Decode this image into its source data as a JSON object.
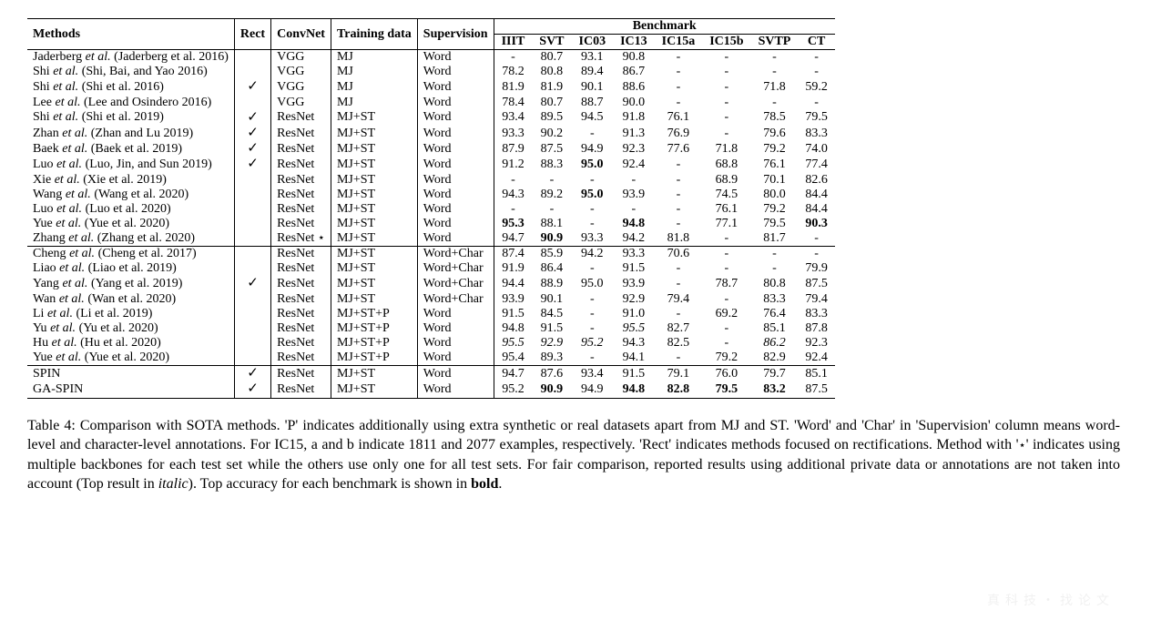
{
  "header": {
    "methods": "Methods",
    "rect": "Rect",
    "convnet": "ConvNet",
    "training": "Training data",
    "supervision": "Supervision",
    "benchmark": "Benchmark",
    "cols": [
      "IIIT",
      "SVT",
      "IC03",
      "IC13",
      "IC15a",
      "IC15b",
      "SVTP",
      "CT"
    ]
  },
  "check_symbol": "✓",
  "star_symbol": "⋆",
  "dash": "-",
  "groups": [
    {
      "rows": [
        {
          "method_pre": "Jaderberg ",
          "method_it": "et al.",
          "method_post": " (Jaderberg et al. 2016)",
          "rect": false,
          "convnet": "VGG",
          "training": "MJ",
          "supervision": "Word",
          "vals": [
            {
              "t": "-"
            },
            {
              "t": "80.7"
            },
            {
              "t": "93.1"
            },
            {
              "t": "90.8"
            },
            {
              "t": "-"
            },
            {
              "t": "-"
            },
            {
              "t": "-"
            },
            {
              "t": "-"
            }
          ]
        },
        {
          "method_pre": "Shi ",
          "method_it": "et al.",
          "method_post": " (Shi, Bai, and Yao 2016)",
          "rect": false,
          "convnet": "VGG",
          "training": "MJ",
          "supervision": "Word",
          "vals": [
            {
              "t": "78.2"
            },
            {
              "t": "80.8"
            },
            {
              "t": "89.4"
            },
            {
              "t": "86.7"
            },
            {
              "t": "-"
            },
            {
              "t": "-"
            },
            {
              "t": "-"
            },
            {
              "t": "-"
            }
          ]
        },
        {
          "method_pre": "Shi ",
          "method_it": "et al.",
          "method_post": " (Shi et al. 2016)",
          "rect": true,
          "convnet": "VGG",
          "training": "MJ",
          "supervision": "Word",
          "vals": [
            {
              "t": "81.9"
            },
            {
              "t": "81.9"
            },
            {
              "t": "90.1"
            },
            {
              "t": "88.6"
            },
            {
              "t": "-"
            },
            {
              "t": "-"
            },
            {
              "t": "71.8"
            },
            {
              "t": "59.2"
            }
          ]
        },
        {
          "method_pre": "Lee ",
          "method_it": "et al.",
          "method_post": " (Lee and Osindero 2016)",
          "rect": false,
          "convnet": "VGG",
          "training": "MJ",
          "supervision": "Word",
          "vals": [
            {
              "t": "78.4"
            },
            {
              "t": "80.7"
            },
            {
              "t": "88.7"
            },
            {
              "t": "90.0"
            },
            {
              "t": "-"
            },
            {
              "t": "-"
            },
            {
              "t": "-"
            },
            {
              "t": "-"
            }
          ]
        },
        {
          "method_pre": "Shi ",
          "method_it": "et al.",
          "method_post": " (Shi et al. 2019)",
          "rect": true,
          "convnet": "ResNet",
          "training": "MJ+ST",
          "supervision": "Word",
          "vals": [
            {
              "t": "93.4"
            },
            {
              "t": "89.5"
            },
            {
              "t": "94.5"
            },
            {
              "t": "91.8"
            },
            {
              "t": "76.1"
            },
            {
              "t": "-"
            },
            {
              "t": "78.5"
            },
            {
              "t": "79.5"
            }
          ]
        },
        {
          "method_pre": "Zhan ",
          "method_it": "et al.",
          "method_post": " (Zhan and Lu 2019)",
          "rect": true,
          "convnet": "ResNet",
          "training": "MJ+ST",
          "supervision": "Word",
          "vals": [
            {
              "t": "93.3"
            },
            {
              "t": "90.2"
            },
            {
              "t": "-"
            },
            {
              "t": "91.3"
            },
            {
              "t": "76.9"
            },
            {
              "t": "-"
            },
            {
              "t": "79.6"
            },
            {
              "t": "83.3"
            }
          ]
        },
        {
          "method_pre": "Baek ",
          "method_it": "et al.",
          "method_post": " (Baek et al. 2019)",
          "rect": true,
          "convnet": "ResNet",
          "training": "MJ+ST",
          "supervision": "Word",
          "vals": [
            {
              "t": "87.9"
            },
            {
              "t": "87.5"
            },
            {
              "t": "94.9"
            },
            {
              "t": "92.3"
            },
            {
              "t": "77.6"
            },
            {
              "t": "71.8"
            },
            {
              "t": "79.2"
            },
            {
              "t": "74.0"
            }
          ]
        },
        {
          "method_pre": "Luo ",
          "method_it": "et al.",
          "method_post": " (Luo, Jin, and Sun 2019)",
          "rect": true,
          "convnet": "ResNet",
          "training": "MJ+ST",
          "supervision": "Word",
          "vals": [
            {
              "t": "91.2"
            },
            {
              "t": "88.3"
            },
            {
              "t": "95.0",
              "b": true
            },
            {
              "t": "92.4"
            },
            {
              "t": "-"
            },
            {
              "t": "68.8"
            },
            {
              "t": "76.1"
            },
            {
              "t": "77.4"
            }
          ]
        },
        {
          "method_pre": "Xie ",
          "method_it": "et al.",
          "method_post": " (Xie et al. 2019)",
          "rect": false,
          "convnet": "ResNet",
          "training": "MJ+ST",
          "supervision": "Word",
          "vals": [
            {
              "t": "-"
            },
            {
              "t": "-"
            },
            {
              "t": "-"
            },
            {
              "t": "-"
            },
            {
              "t": "-"
            },
            {
              "t": "68.9"
            },
            {
              "t": "70.1"
            },
            {
              "t": "82.6"
            }
          ]
        },
        {
          "method_pre": "Wang ",
          "method_it": "et al.",
          "method_post": " (Wang et al. 2020)",
          "rect": false,
          "convnet": "ResNet",
          "training": "MJ+ST",
          "supervision": "Word",
          "vals": [
            {
              "t": "94.3"
            },
            {
              "t": "89.2"
            },
            {
              "t": "95.0",
              "b": true
            },
            {
              "t": "93.9"
            },
            {
              "t": "-"
            },
            {
              "t": "74.5"
            },
            {
              "t": "80.0"
            },
            {
              "t": "84.4"
            }
          ]
        },
        {
          "method_pre": "Luo ",
          "method_it": "et al.",
          "method_post": " (Luo et al. 2020)",
          "rect": false,
          "convnet": "ResNet",
          "training": "MJ+ST",
          "supervision": "Word",
          "vals": [
            {
              "t": "-"
            },
            {
              "t": "-"
            },
            {
              "t": "-"
            },
            {
              "t": "-"
            },
            {
              "t": "-"
            },
            {
              "t": "76.1"
            },
            {
              "t": "79.2"
            },
            {
              "t": "84.4"
            }
          ]
        },
        {
          "method_pre": "Yue ",
          "method_it": "et al.",
          "method_post": " (Yue et al. 2020)",
          "rect": false,
          "convnet": "ResNet",
          "training": "MJ+ST",
          "supervision": "Word",
          "vals": [
            {
              "t": "95.3",
              "b": true
            },
            {
              "t": "88.1"
            },
            {
              "t": "-"
            },
            {
              "t": "94.8",
              "b": true
            },
            {
              "t": "-"
            },
            {
              "t": "77.1"
            },
            {
              "t": "79.5"
            },
            {
              "t": "90.3",
              "b": true
            }
          ]
        },
        {
          "method_pre": "Zhang ",
          "method_it": "et al.",
          "method_post": " (Zhang et al. 2020)",
          "rect": false,
          "convnet": "ResNet",
          "convnet_star": true,
          "training": "MJ+ST",
          "supervision": "Word",
          "vals": [
            {
              "t": "94.7"
            },
            {
              "t": "90.9",
              "b": true
            },
            {
              "t": "93.3"
            },
            {
              "t": "94.2"
            },
            {
              "t": "81.8"
            },
            {
              "t": "-"
            },
            {
              "t": "81.7"
            },
            {
              "t": "-"
            }
          ]
        }
      ]
    },
    {
      "rows": [
        {
          "method_pre": "Cheng ",
          "method_it": "et al.",
          "method_post": " (Cheng et al. 2017)",
          "rect": false,
          "convnet": "ResNet",
          "training": "MJ+ST",
          "supervision": "Word+Char",
          "vals": [
            {
              "t": "87.4"
            },
            {
              "t": "85.9"
            },
            {
              "t": "94.2"
            },
            {
              "t": "93.3"
            },
            {
              "t": "70.6"
            },
            {
              "t": "-"
            },
            {
              "t": "-"
            },
            {
              "t": "-"
            }
          ]
        },
        {
          "method_pre": "Liao ",
          "method_it": "et al.",
          "method_post": " (Liao et al. 2019)",
          "rect": false,
          "convnet": "ResNet",
          "training": "MJ+ST",
          "supervision": "Word+Char",
          "vals": [
            {
              "t": "91.9"
            },
            {
              "t": "86.4"
            },
            {
              "t": "-"
            },
            {
              "t": "91.5"
            },
            {
              "t": "-"
            },
            {
              "t": "-"
            },
            {
              "t": "-"
            },
            {
              "t": "79.9"
            }
          ]
        },
        {
          "method_pre": "Yang ",
          "method_it": "et al.",
          "method_post": " (Yang et al. 2019)",
          "rect": true,
          "convnet": "ResNet",
          "training": "MJ+ST",
          "supervision": "Word+Char",
          "vals": [
            {
              "t": "94.4"
            },
            {
              "t": "88.9"
            },
            {
              "t": "95.0"
            },
            {
              "t": "93.9"
            },
            {
              "t": "-"
            },
            {
              "t": "78.7"
            },
            {
              "t": "80.8"
            },
            {
              "t": "87.5"
            }
          ]
        },
        {
          "method_pre": "Wan ",
          "method_it": "et al.",
          "method_post": " (Wan et al. 2020)",
          "rect": false,
          "convnet": "ResNet",
          "training": "MJ+ST",
          "supervision": "Word+Char",
          "vals": [
            {
              "t": "93.9"
            },
            {
              "t": "90.1"
            },
            {
              "t": "-"
            },
            {
              "t": "92.9"
            },
            {
              "t": "79.4"
            },
            {
              "t": "-"
            },
            {
              "t": "83.3"
            },
            {
              "t": "79.4"
            }
          ]
        },
        {
          "method_pre": "Li ",
          "method_it": "et al.",
          "method_post": " (Li et al. 2019)",
          "rect": false,
          "convnet": "ResNet",
          "training": "MJ+ST+P",
          "supervision": "Word",
          "vals": [
            {
              "t": "91.5"
            },
            {
              "t": "84.5"
            },
            {
              "t": "-"
            },
            {
              "t": "91.0"
            },
            {
              "t": "-"
            },
            {
              "t": "69.2"
            },
            {
              "t": "76.4"
            },
            {
              "t": "83.3"
            }
          ]
        },
        {
          "method_pre": "Yu ",
          "method_it": "et al.",
          "method_post": " (Yu et al. 2020)",
          "rect": false,
          "convnet": "ResNet",
          "training": "MJ+ST+P",
          "supervision": "Word",
          "vals": [
            {
              "t": "94.8"
            },
            {
              "t": "91.5"
            },
            {
              "t": "-"
            },
            {
              "t": "95.5",
              "i": true
            },
            {
              "t": "82.7"
            },
            {
              "t": "-"
            },
            {
              "t": "85.1"
            },
            {
              "t": "87.8"
            }
          ]
        },
        {
          "method_pre": "Hu ",
          "method_it": "et al.",
          "method_post": " (Hu et al. 2020)",
          "rect": false,
          "convnet": "ResNet",
          "training": "MJ+ST+P",
          "supervision": "Word",
          "vals": [
            {
              "t": "95.5",
              "i": true
            },
            {
              "t": "92.9",
              "i": true
            },
            {
              "t": "95.2",
              "i": true
            },
            {
              "t": "94.3"
            },
            {
              "t": "82.5"
            },
            {
              "t": "-"
            },
            {
              "t": "86.2",
              "i": true
            },
            {
              "t": "92.3"
            }
          ]
        },
        {
          "method_pre": "Yue ",
          "method_it": "et al.",
          "method_post": " (Yue et al. 2020)",
          "rect": false,
          "convnet": "ResNet",
          "training": "MJ+ST+P",
          "supervision": "Word",
          "vals": [
            {
              "t": "95.4"
            },
            {
              "t": "89.3"
            },
            {
              "t": "-"
            },
            {
              "t": "94.1"
            },
            {
              "t": "-"
            },
            {
              "t": "79.2"
            },
            {
              "t": "82.9"
            },
            {
              "t": "92.4"
            }
          ]
        }
      ]
    },
    {
      "rows": [
        {
          "method_plain": "SPIN",
          "rect": true,
          "convnet": "ResNet",
          "training": "MJ+ST",
          "supervision": "Word",
          "vals": [
            {
              "t": "94.7"
            },
            {
              "t": "87.6"
            },
            {
              "t": "93.4"
            },
            {
              "t": "91.5"
            },
            {
              "t": "79.1"
            },
            {
              "t": "76.0"
            },
            {
              "t": "79.7"
            },
            {
              "t": "85.1"
            }
          ]
        },
        {
          "method_plain": "GA-SPIN",
          "rect": true,
          "convnet": "ResNet",
          "training": "MJ+ST",
          "supervision": "Word",
          "vals": [
            {
              "t": "95.2"
            },
            {
              "t": "90.9",
              "b": true
            },
            {
              "t": "94.9"
            },
            {
              "t": "94.8",
              "b": true
            },
            {
              "t": "82.8",
              "b": true
            },
            {
              "t": "79.5",
              "b": true
            },
            {
              "t": "83.2",
              "b": true
            },
            {
              "t": "87.5"
            }
          ]
        }
      ]
    }
  ],
  "caption_parts": {
    "p1": "Table 4: Comparison with SOTA methods. 'P' indicates additionally using extra synthetic or real datasets apart from MJ and ST. 'Word' and 'Char' in 'Supervision' column means word-level and character-level annotations. For IC15, a and b indicate 1811 and 2077 examples, respectively. 'Rect' indicates methods focused on rectifications. Method with '",
    "star": "⋆",
    "p2": "' indicates using multiple backbones for each test set while the others use only one for all test sets. For fair comparison, reported results using additional private data or annotations are not taken into account (Top result in ",
    "italic_word": "italic",
    "p3": "). Top accuracy for each benchmark is shown in ",
    "bold_word": "bold",
    "p4": "."
  },
  "watermark": "真科技・找论文"
}
